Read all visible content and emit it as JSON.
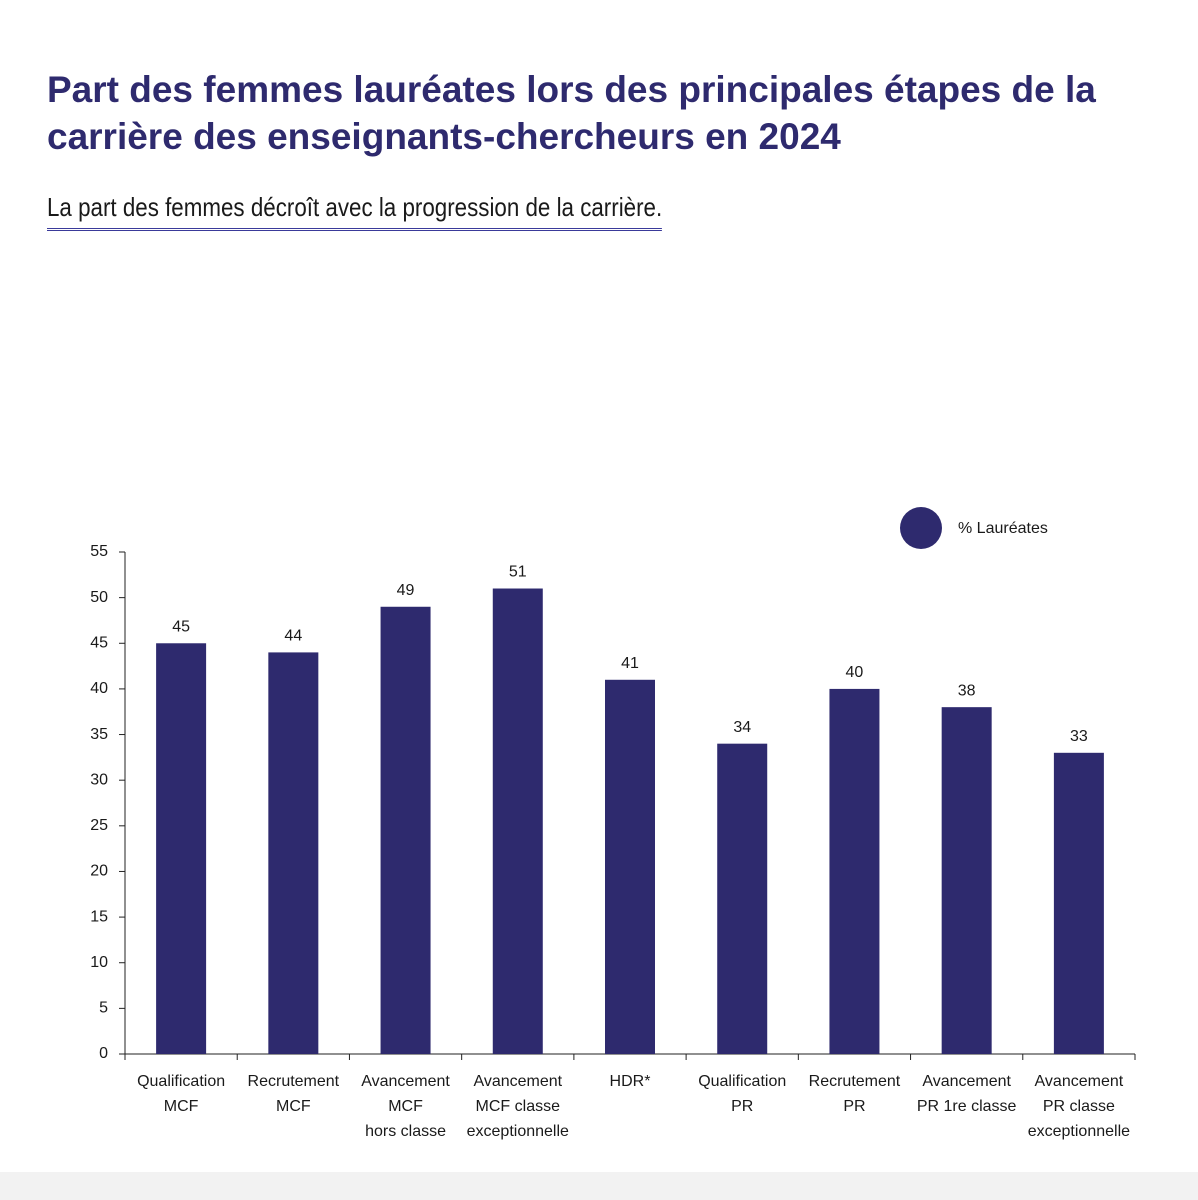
{
  "chart_data": {
    "type": "bar",
    "title": "Part des femmes lauréates lors des principales étapes de la carrière des enseignants-chercheurs en 2024",
    "subtitle": "La part des femmes décroît avec la progression de la carrière.",
    "categories": [
      [
        "Qualification",
        "MCF"
      ],
      [
        "Recrutement",
        "MCF"
      ],
      [
        "Avancement",
        "MCF",
        "hors classe"
      ],
      [
        "Avancement",
        "MCF classe",
        "exceptionnelle"
      ],
      [
        "HDR*"
      ],
      [
        "Qualification",
        "PR"
      ],
      [
        "Recrutement",
        "PR"
      ],
      [
        "Avancement",
        "PR 1re classe"
      ],
      [
        "Avancement",
        "PR classe",
        "exceptionnelle"
      ]
    ],
    "series": [
      {
        "name": "% Lauréates",
        "color": "#2e2a6e",
        "values": [
          45,
          44,
          49,
          51,
          41,
          34,
          40,
          38,
          33
        ]
      }
    ],
    "ylim": [
      0,
      55
    ],
    "yticks": [
      0,
      5,
      10,
      15,
      20,
      25,
      30,
      35,
      40,
      45,
      50,
      55
    ],
    "grid": false,
    "legend": "top-right"
  }
}
